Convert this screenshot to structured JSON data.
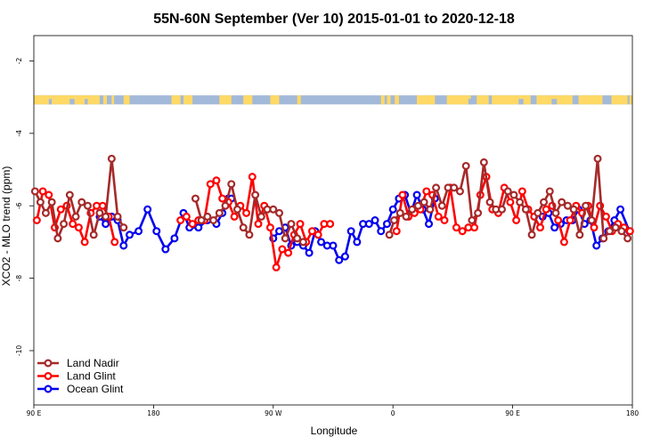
{
  "chart_data": {
    "type": "line",
    "title": "55N-60N September (Ver 10)   2015-01-01 to 2020-12-18",
    "xlabel": "Longitude",
    "ylabel": "XCO2 - MLO trend (ppm)",
    "xlim": [
      0,
      100
    ],
    "ylim": [
      -11.5,
      -1.3
    ],
    "x_ticks": [
      {
        "pos": 0,
        "label": "90 E"
      },
      {
        "pos": 20,
        "label": "180"
      },
      {
        "pos": 40,
        "label": "90 W"
      },
      {
        "pos": 60,
        "label": "0"
      },
      {
        "pos": 80,
        "label": "90 E"
      },
      {
        "pos": 100,
        "label": "180"
      }
    ],
    "y_ticks": [
      {
        "value": -2,
        "label": "-2"
      },
      {
        "value": -4,
        "label": "-4"
      },
      {
        "value": -6,
        "label": "-6"
      },
      {
        "value": -8,
        "label": "-8"
      },
      {
        "value": -10,
        "label": "-10"
      }
    ],
    "map_band": {
      "y_top": -2.95,
      "y_bottom": -3.2,
      "land_color": "#FFD966",
      "ocean_color": "#A3B9D9"
    },
    "legend": {
      "position": "bottom-left"
    },
    "series": [
      {
        "name": "Land Nadir",
        "color": "#A52A2A",
        "x": [
          0.2,
          1.1,
          2.0,
          3.0,
          4.0,
          5.0,
          6.0,
          7.0,
          8.0,
          9.0,
          10.0,
          11.0,
          12.0,
          13.0,
          14.0,
          15.0,
          27.0,
          28.0,
          29.0,
          30.0,
          31.0,
          32.0,
          33.0,
          34.0,
          35.0,
          36.0,
          37.0,
          38.0,
          39.0,
          40.0,
          41.0,
          42.0,
          43.0,
          44.0,
          45.0,
          59.4,
          60.2,
          61.2,
          62.2,
          63.2,
          64.2,
          65.2,
          66.2,
          67.2,
          68.2,
          69.2,
          70.2,
          71.2,
          72.2,
          73.2,
          74.2,
          75.2,
          76.2,
          77.2,
          78.2,
          79.2,
          80.2,
          81.2,
          82.2,
          83.2,
          84.2,
          85.2,
          86.2,
          87.2,
          88.2,
          89.2,
          90.2,
          91.2,
          92.2,
          93.2,
          94.2,
          95.2,
          96.2,
          97.2,
          98.2,
          99.2
        ],
        "y": [
          -5.6,
          -5.9,
          -6.2,
          -5.9,
          -6.9,
          -6.5,
          -5.7,
          -6.3,
          -5.9,
          -6.0,
          -6.8,
          -6.2,
          -6.3,
          -4.7,
          -6.3,
          -6.6,
          -5.8,
          -6.4,
          -6.3,
          -6.4,
          -6.2,
          -6.0,
          -5.4,
          -6.1,
          -6.6,
          -6.8,
          -5.7,
          -6.3,
          -6.1,
          -6.1,
          -6.2,
          -6.9,
          -6.5,
          -6.9,
          -7.0,
          -6.8,
          -6.4,
          -6.2,
          -6.3,
          -6.1,
          -6.0,
          -5.9,
          -6.1,
          -5.5,
          -6.0,
          -5.5,
          -5.5,
          -5.6,
          -4.9,
          -6.4,
          -6.2,
          -4.8,
          -5.9,
          -6.1,
          -6.1,
          -5.6,
          -5.7,
          -5.9,
          -6.1,
          -6.8,
          -6.2,
          -5.9,
          -5.6,
          -6.2,
          -5.9,
          -6.0,
          -6.1,
          -6.8,
          -6.0,
          -6.4,
          -4.7,
          -6.9,
          -6.7,
          -6.6,
          -6.7,
          -6.9
        ]
      },
      {
        "name": "Land Glint",
        "color": "#FF0000",
        "x": [
          0.5,
          1.5,
          2.5,
          3.5,
          4.5,
          5.5,
          6.5,
          7.5,
          8.5,
          9.5,
          10.5,
          11.5,
          12.5,
          13.5,
          24.5,
          25.5,
          26.5,
          27.5,
          28.5,
          29.5,
          30.5,
          31.5,
          32.5,
          33.5,
          34.5,
          35.5,
          36.5,
          37.5,
          38.5,
          39.5,
          40.5,
          41.5,
          42.5,
          43.5,
          44.5,
          45.5,
          46.5,
          47.5,
          48.5,
          49.5,
          60.6,
          61.6,
          62.6,
          63.6,
          64.6,
          65.6,
          66.6,
          67.6,
          68.6,
          69.6,
          70.6,
          71.6,
          72.6,
          73.6,
          74.6,
          75.6,
          76.6,
          77.6,
          78.6,
          79.6,
          80.6,
          81.6,
          82.6,
          83.6,
          84.6,
          85.6,
          86.6,
          87.6,
          88.6,
          89.6,
          90.6,
          91.6,
          92.6,
          93.6,
          94.6,
          95.6,
          96.6,
          97.6,
          98.6,
          99.6
        ],
        "y": [
          -6.4,
          -5.6,
          -5.7,
          -6.6,
          -6.1,
          -6.0,
          -6.5,
          -6.6,
          -7.0,
          -6.2,
          -6.0,
          -6.0,
          -6.3,
          -7.0,
          -6.4,
          -6.3,
          -6.5,
          -6.4,
          -6.4,
          -5.4,
          -5.3,
          -5.8,
          -5.9,
          -6.3,
          -6.0,
          -6.2,
          -5.2,
          -6.5,
          -6.0,
          -6.6,
          -7.7,
          -7.2,
          -7.3,
          -6.8,
          -6.5,
          -7.0,
          -6.7,
          -6.8,
          -6.5,
          -6.5,
          -6.7,
          -5.7,
          -6.3,
          -6.2,
          -6.1,
          -5.6,
          -5.7,
          -6.3,
          -6.4,
          -5.5,
          -6.6,
          -6.7,
          -6.6,
          -6.6,
          -5.7,
          -5.2,
          -6.1,
          -6.2,
          -5.5,
          -5.9,
          -6.4,
          -5.6,
          -6.1,
          -6.3,
          -6.6,
          -6.1,
          -6.0,
          -6.4,
          -7.0,
          -6.4,
          -6.0,
          -6.2,
          -6.0,
          -6.6,
          -6.0,
          -6.3,
          -6.7,
          -6.5,
          -6.6,
          -6.7
        ],
        "_note": ""
      },
      {
        "name": "Ocean Glint",
        "color": "#0000EE",
        "x": [
          11.0,
          12.0,
          13.0,
          14.0,
          15.0,
          16.0,
          17.5,
          19.0,
          20.5,
          22.0,
          23.5,
          25.0,
          26.0,
          27.5,
          29.0,
          30.5,
          31.5,
          32.5,
          33.0,
          40.0,
          41.0,
          42.0,
          43.0,
          44.0,
          45.0,
          46.0,
          47.0,
          48.0,
          49.0,
          50.0,
          51.0,
          52.0,
          53.0,
          54.0,
          55.0,
          56.0,
          57.0,
          58.0,
          59.0,
          60.0,
          61.0,
          62.0,
          63.0,
          64.0,
          65.0,
          66.0,
          67.0,
          85.0,
          86.0,
          87.0,
          88.0,
          89.0,
          90.0,
          91.0,
          92.0,
          93.0,
          94.0,
          95.0,
          96.0,
          97.0,
          98.0,
          99.5
        ],
        "y": [
          -6.3,
          -6.5,
          -6.3,
          -6.4,
          -7.1,
          -6.8,
          -6.7,
          -6.1,
          -6.7,
          -7.2,
          -6.9,
          -6.2,
          -6.6,
          -6.6,
          -6.4,
          -6.5,
          -6.2,
          -5.8,
          -5.8,
          -6.9,
          -6.7,
          -6.6,
          -7.1,
          -7.0,
          -7.1,
          -7.3,
          -6.7,
          -7.0,
          -7.1,
          -7.1,
          -7.5,
          -7.4,
          -6.7,
          -7.0,
          -6.5,
          -6.5,
          -6.4,
          -6.7,
          -6.5,
          -6.1,
          -5.8,
          -5.7,
          -6.2,
          -5.7,
          -6.1,
          -6.5,
          -5.8,
          -6.3,
          -6.2,
          -6.6,
          -6.5,
          -6.4,
          -6.4,
          -6.1,
          -6.5,
          -6.4,
          -7.1,
          -6.9,
          -6.7,
          -6.4,
          -6.1,
          -6.7
        ]
      }
    ]
  }
}
